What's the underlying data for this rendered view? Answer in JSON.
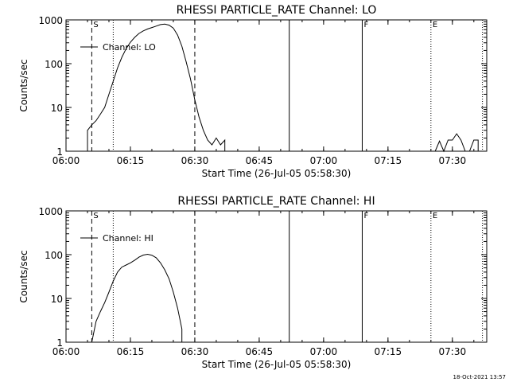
{
  "footer": "18-Oct-2021 13:57",
  "chart_data": [
    {
      "type": "line",
      "title": "RHESSI PARTICLE_RATE Channel: LO",
      "xlabel": "Start Time (26-Jul-05 05:58:30)",
      "ylabel": "Counts/sec",
      "xlim": [
        "06:00",
        "07:38"
      ],
      "ylim": [
        1,
        1000
      ],
      "y_scale": "log",
      "x_ticks": [
        "06:00",
        "06:15",
        "06:30",
        "06:45",
        "07:00",
        "07:15",
        "07:30"
      ],
      "y_ticks": [
        "1",
        "10",
        "100",
        "1000"
      ],
      "legend": "top-left",
      "series": [
        {
          "name": "Channel: LO",
          "segments": [
            [
              [
                "06:05",
                1
              ],
              [
                "06:05",
                3
              ],
              [
                "06:06",
                4
              ],
              [
                "06:07",
                5
              ],
              [
                "06:08",
                7
              ],
              [
                "06:09",
                10
              ],
              [
                "06:10",
                20
              ],
              [
                "06:11",
                40
              ],
              [
                "06:12",
                80
              ],
              [
                "06:13",
                140
              ],
              [
                "06:14",
                220
              ],
              [
                "06:15",
                310
              ],
              [
                "06:16",
                400
              ],
              [
                "06:17",
                490
              ],
              [
                "06:18",
                560
              ],
              [
                "06:19",
                620
              ],
              [
                "06:20",
                670
              ],
              [
                "06:21",
                720
              ],
              [
                "06:22",
                780
              ],
              [
                "06:23",
                800
              ],
              [
                "06:24",
                760
              ],
              [
                "06:25",
                650
              ],
              [
                "06:26",
                450
              ],
              [
                "06:27",
                250
              ],
              [
                "06:28",
                110
              ],
              [
                "06:29",
                45
              ],
              [
                "06:30",
                15
              ],
              [
                "06:31",
                6
              ],
              [
                "06:32",
                3
              ],
              [
                "06:33",
                1.8
              ],
              [
                "06:34",
                1.4
              ],
              [
                "06:35",
                2
              ],
              [
                "06:36",
                1.4
              ],
              [
                "06:37",
                1.8
              ],
              [
                "06:37",
                1
              ]
            ],
            [
              [
                "07:26",
                1
              ],
              [
                "07:27",
                1.7
              ],
              [
                "07:28",
                1
              ],
              [
                "07:29",
                1.8
              ],
              [
                "07:30",
                1.8
              ],
              [
                "07:31",
                2.5
              ],
              [
                "07:32",
                1.8
              ],
              [
                "07:33",
                1
              ],
              [
                "07:34",
                1
              ],
              [
                "07:35",
                1.8
              ],
              [
                "07:36",
                1.8
              ],
              [
                "07:36",
                1
              ]
            ]
          ]
        }
      ],
      "markers": {
        "F": "07:09",
        "S": "06:06",
        "E": "07:25"
      },
      "vlines": {
        "dashed": [
          "06:06",
          "06:30"
        ],
        "dotted": [
          "06:11",
          "07:25",
          "07:37"
        ],
        "solid": [
          "06:52",
          "07:09"
        ]
      }
    },
    {
      "type": "line",
      "title": "RHESSI PARTICLE_RATE Channel: HI",
      "xlabel": "Start Time (26-Jul-05 05:58:30)",
      "ylabel": "Counts/sec",
      "xlim": [
        "06:00",
        "07:38"
      ],
      "ylim": [
        1,
        1000
      ],
      "y_scale": "log",
      "x_ticks": [
        "06:00",
        "06:15",
        "06:30",
        "06:45",
        "07:00",
        "07:15",
        "07:30"
      ],
      "y_ticks": [
        "1",
        "10",
        "100",
        "1000"
      ],
      "legend": "top-left",
      "series": [
        {
          "name": "Channel: HI",
          "segments": [
            [
              [
                "06:06",
                1
              ],
              [
                "06:07",
                3
              ],
              [
                "06:08",
                5
              ],
              [
                "06:09",
                8
              ],
              [
                "06:10",
                14
              ],
              [
                "06:11",
                25
              ],
              [
                "06:12",
                40
              ],
              [
                "06:13",
                52
              ],
              [
                "06:14",
                58
              ],
              [
                "06:15",
                65
              ],
              [
                "06:16",
                75
              ],
              [
                "06:17",
                88
              ],
              [
                "06:18",
                98
              ],
              [
                "06:19",
                102
              ],
              [
                "06:20",
                97
              ],
              [
                "06:21",
                85
              ],
              [
                "06:22",
                65
              ],
              [
                "06:23",
                45
              ],
              [
                "06:24",
                28
              ],
              [
                "06:25",
                14
              ],
              [
                "06:26",
                6
              ],
              [
                "06:27",
                2
              ],
              [
                "06:27",
                1
              ]
            ]
          ]
        }
      ],
      "markers": {
        "F": "07:09",
        "S": "06:06",
        "E": "07:25"
      },
      "vlines": {
        "dashed": [
          "06:06",
          "06:30"
        ],
        "dotted": [
          "06:11",
          "07:25",
          "07:37"
        ],
        "solid": [
          "06:52",
          "07:09"
        ]
      }
    }
  ]
}
